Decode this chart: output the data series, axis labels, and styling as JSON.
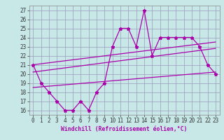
{
  "x": [
    0,
    1,
    2,
    3,
    4,
    5,
    6,
    7,
    8,
    9,
    10,
    11,
    12,
    13,
    14,
    15,
    16,
    17,
    18,
    19,
    20,
    21,
    22,
    23
  ],
  "y_main": [
    21,
    19,
    18,
    17,
    16,
    16,
    17,
    16,
    18,
    19,
    23,
    25,
    25,
    23,
    27,
    22,
    24,
    24,
    24,
    24,
    24,
    23,
    21,
    20
  ],
  "trend1_x": [
    0,
    23
  ],
  "trend1_y": [
    21.0,
    23.5
  ],
  "trend2_x": [
    0,
    23
  ],
  "trend2_y": [
    20.2,
    22.8
  ],
  "trend3_x": [
    0,
    23
  ],
  "trend3_y": [
    18.5,
    20.2
  ],
  "bg_color": "#c8e8e8",
  "line_color": "#aa00aa",
  "grid_color": "#9999bb",
  "xlabel": "Windchill (Refroidissement éolien,°C)",
  "yticks": [
    16,
    17,
    18,
    19,
    20,
    21,
    22,
    23,
    24,
    25,
    26,
    27
  ],
  "xticks": [
    0,
    1,
    2,
    3,
    4,
    5,
    6,
    7,
    8,
    9,
    10,
    11,
    12,
    13,
    14,
    15,
    16,
    17,
    18,
    19,
    20,
    21,
    22,
    23
  ],
  "ylim": [
    15.5,
    27.5
  ],
  "xlim": [
    -0.5,
    23.5
  ]
}
